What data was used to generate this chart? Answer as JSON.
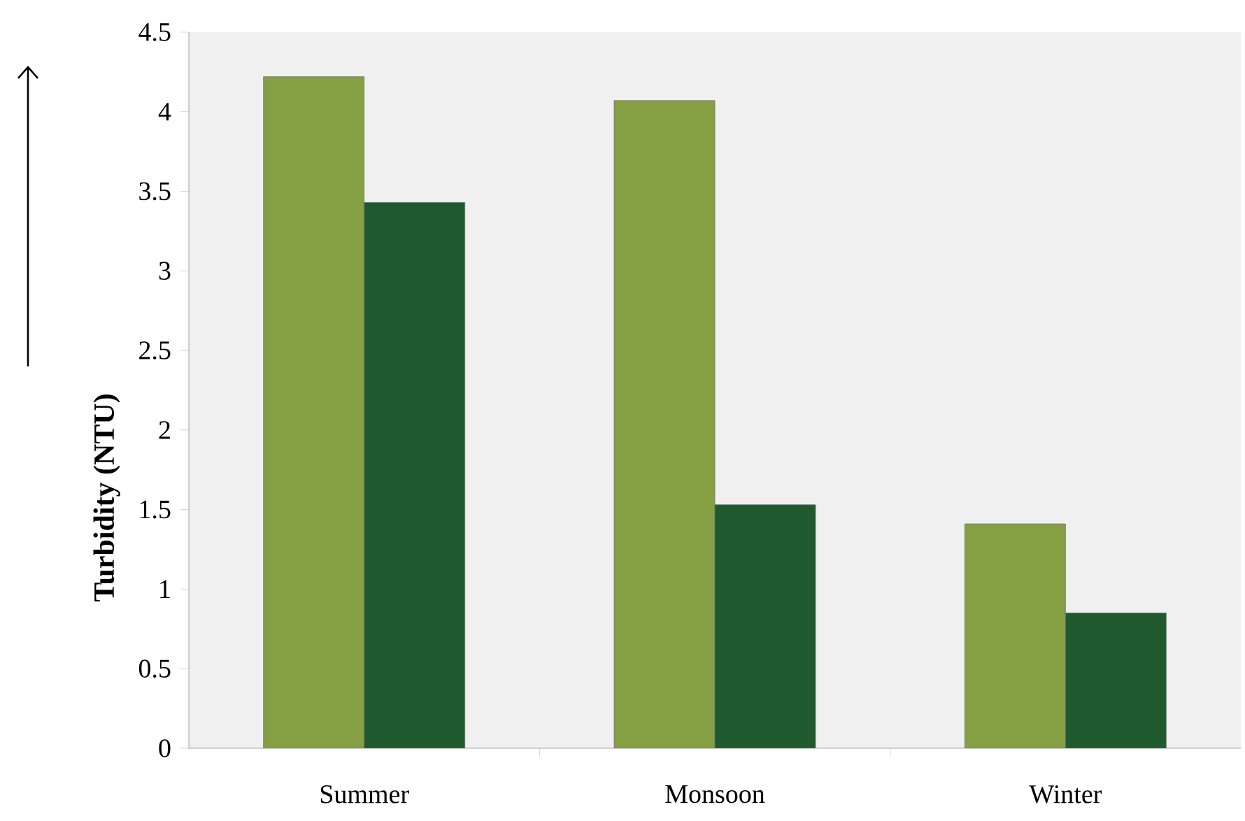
{
  "chart_data": {
    "type": "bar",
    "ylabel": "Turbidity (NTU)",
    "categories": [
      "Summer",
      "Monsoon",
      "Winter"
    ],
    "series": [
      {
        "color": "#84a043",
        "values": [
          4.22,
          4.07,
          1.41
        ]
      },
      {
        "color": "#1e5a2e",
        "values": [
          3.43,
          1.53,
          0.85
        ]
      }
    ],
    "ylim": [
      0,
      4.5
    ],
    "yticks": [
      0,
      0.5,
      1,
      1.5,
      2,
      2.5,
      3,
      3.5,
      4,
      4.5
    ],
    "grid": false
  }
}
